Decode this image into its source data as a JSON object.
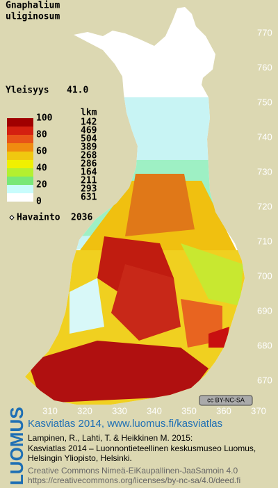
{
  "title": [
    "Gnaphalium",
    "uliginosum"
  ],
  "frequency": {
    "label": "Yleisyys",
    "value": "41.0"
  },
  "legend": {
    "header": "lkm",
    "levels": [
      "100",
      "80",
      "60",
      "40",
      "20",
      "0"
    ],
    "classes": [
      {
        "color": "#a00000",
        "count": "142"
      },
      {
        "color": "#d42010",
        "count": "469"
      },
      {
        "color": "#e85418",
        "count": "504"
      },
      {
        "color": "#f08c10",
        "count": "389"
      },
      {
        "color": "#f0c810",
        "count": "268"
      },
      {
        "color": "#f0f000",
        "count": "286"
      },
      {
        "color": "#b4f030",
        "count": "164"
      },
      {
        "color": "#78e878",
        "count": "211"
      },
      {
        "color": "#c8fcfc",
        "count": "293"
      },
      {
        "color": "#ffffff",
        "count": "631"
      }
    ]
  },
  "observations": {
    "label": "Havainto",
    "count": "2036"
  },
  "y_axis": [
    "770",
    "760",
    "750",
    "740",
    "730",
    "720",
    "710",
    "700",
    "690",
    "680",
    "670"
  ],
  "x_axis": [
    "310",
    "320",
    "330",
    "340",
    "350",
    "360",
    "370"
  ],
  "footer": {
    "badge": "cc BY-NC-SA",
    "logo": "LUOMUS",
    "atlas": "Kasviatlas 2014, www.luomus.fi/kasviatlas",
    "citation": [
      "Lampinen, R., Lahti, T. & Heikkinen M. 2015:",
      "Kasviatlas 2014 – Luonnontieteellinen keskusmuseo Luomus,",
      "Helsingin Yliopisto, Helsinki."
    ],
    "license": [
      "Creative Commons Nimeä-EiKaupallinen-JaaSamoin 4.0",
      "https://creativecommons.org/licenses/by-nc-sa/4.0/deed.fi"
    ]
  }
}
